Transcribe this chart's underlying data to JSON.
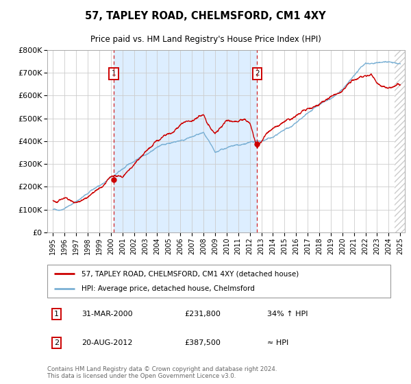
{
  "title": "57, TAPLEY ROAD, CHELMSFORD, CM1 4XY",
  "subtitle": "Price paid vs. HM Land Registry's House Price Index (HPI)",
  "legend_line1": "57, TAPLEY ROAD, CHELMSFORD, CM1 4XY (detached house)",
  "legend_line2": "HPI: Average price, detached house, Chelmsford",
  "annotation1_date": "31-MAR-2000",
  "annotation1_price": "£231,800",
  "annotation1_hpi": "34% ↑ HPI",
  "annotation2_date": "20-AUG-2012",
  "annotation2_price": "£387,500",
  "annotation2_hpi": "≈ HPI",
  "footer": "Contains HM Land Registry data © Crown copyright and database right 2024.\nThis data is licensed under the Open Government Licence v3.0.",
  "red_color": "#cc0000",
  "blue_color": "#7ab0d4",
  "bg_color": "#ddeeff",
  "grid_color": "#cccccc",
  "hatch_color": "#cccccc",
  "ylim": [
    0,
    800000
  ],
  "yticks": [
    0,
    100000,
    200000,
    300000,
    400000,
    500000,
    600000,
    700000,
    800000
  ],
  "marker1_x": 2000.25,
  "marker1_y": 231800,
  "marker2_x": 2012.63,
  "marker2_y": 387500,
  "vline1_x": 2000.25,
  "vline2_x": 2012.63,
  "xmin": 1994.5,
  "xmax": 2025.4
}
